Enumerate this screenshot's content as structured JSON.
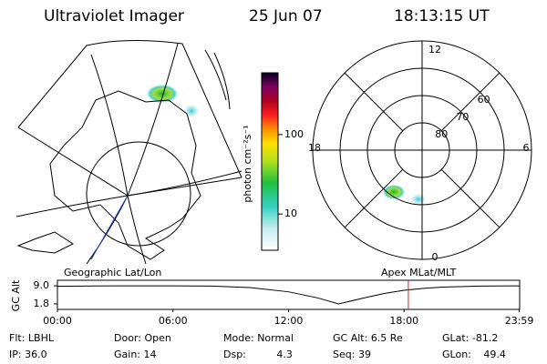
{
  "header": {
    "instrument": "Ultraviolet Imager",
    "date": "25 Jun 07",
    "time": "18:13:15 UT"
  },
  "colorbar": {
    "label": "photon cm⁻²s⁻¹",
    "scale": "log",
    "lim": [
      3.5,
      600
    ],
    "ticks": [
      10,
      100
    ]
  },
  "polar_plot": {
    "mlt_ticks": [
      12,
      18,
      6,
      0
    ],
    "lat_circles": [
      80,
      70,
      60
    ],
    "lat_lim": [
      90,
      50
    ]
  },
  "strip": {
    "left_label": "Geographic Lat/Lon",
    "right_label": "Apex MLat/MLT",
    "y_label": "GC Alt",
    "ylim": [
      -0.4,
      11.2
    ],
    "yticks": [
      {
        "value": 9,
        "label": "9.0"
      },
      1.8
    ],
    "xlim": [
      0,
      24
    ],
    "xticks": [
      {
        "value": 0,
        "label": "00:00"
      },
      {
        "value": 6,
        "label": "06:00"
      },
      {
        "value": 12,
        "label": "12:00"
      },
      {
        "value": 18,
        "label": "18:00"
      },
      {
        "value": 23.98,
        "label": "23:59"
      }
    ],
    "current_time": 18.22,
    "marker_color": "#e02020",
    "altitude_x": [
      0,
      2,
      4,
      6,
      8,
      10,
      12,
      13.5,
      14.6,
      16,
      17,
      18,
      19,
      20,
      22,
      23.98
    ],
    "altitude_y": [
      8.8,
      8.95,
      9.0,
      9.0,
      8.9,
      8.3,
      6.6,
      4.2,
      1.8,
      4.3,
      6.0,
      7.2,
      8.0,
      8.5,
      8.9,
      9.0
    ]
  },
  "info": [
    [
      {
        "label": "Flt:",
        "value": "LBHL"
      },
      {
        "label": "Door:",
        "value": "Open"
      },
      {
        "label": "Mode:",
        "value": "Normal"
      },
      {
        "label": "GC Alt:",
        "value": "6.5 Re"
      },
      {
        "label": "GLat:",
        "value": "-81.2"
      }
    ],
    [
      {
        "label": "IP:",
        "value": "36.0"
      },
      {
        "label": "Gain:",
        "value": "14"
      },
      {
        "label": "Dsp:",
        "value": "4.3"
      },
      {
        "label": "Seq:",
        "value": "39"
      },
      {
        "label": "GLon:",
        "value": "49.4"
      }
    ]
  ]
}
